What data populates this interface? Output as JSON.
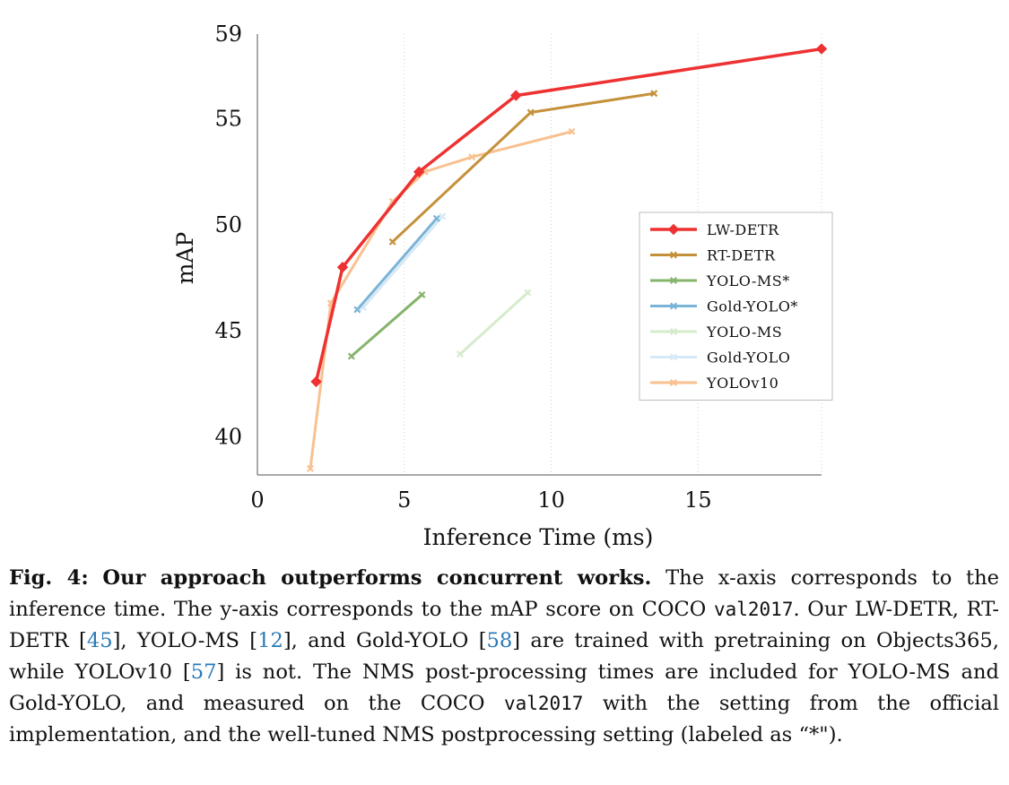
{
  "chart_data": {
    "type": "line",
    "xlabel": "Inference Time (ms)",
    "ylabel": "mAP",
    "xlim": [
      0,
      19.2
    ],
    "ylim": [
      38.2,
      59
    ],
    "x_ticks": [
      0,
      5,
      10,
      15
    ],
    "y_ticks": [
      59,
      55,
      50,
      45,
      40
    ],
    "grid": "x-only, dotted",
    "legend_position": "center-right",
    "series": [
      {
        "name": "LW-DETR",
        "color": "#ee3131",
        "marker": "diamond",
        "width": 3.5,
        "x": [
          2.0,
          2.9,
          5.5,
          8.8,
          19.2
        ],
        "y": [
          42.6,
          48.0,
          52.5,
          56.1,
          58.3
        ]
      },
      {
        "name": "RT-DETR",
        "color": "#c4913a",
        "marker": "x",
        "width": 3,
        "x": [
          4.6,
          9.3,
          13.5
        ],
        "y": [
          49.2,
          55.3,
          56.2
        ]
      },
      {
        "name": "YOLO-MS*",
        "color": "#86b46b",
        "marker": "x",
        "width": 3,
        "x": [
          3.2,
          5.6
        ],
        "y": [
          43.8,
          46.7
        ]
      },
      {
        "name": "Gold-YOLO*",
        "color": "#7ab4d6",
        "marker": "x",
        "width": 3,
        "x": [
          3.4,
          6.1
        ],
        "y": [
          46.0,
          50.3
        ]
      },
      {
        "name": "YOLO-MS",
        "color": "#d5ebcb",
        "marker": "x",
        "width": 3,
        "x": [
          6.9,
          9.2
        ],
        "y": [
          43.9,
          46.8
        ]
      },
      {
        "name": "Gold-YOLO",
        "color": "#d6e9f6",
        "marker": "x",
        "width": 3,
        "x": [
          3.6,
          6.3
        ],
        "y": [
          46.1,
          50.4
        ]
      },
      {
        "name": "YOLOv10",
        "color": "#f8c18f",
        "marker": "x",
        "width": 3,
        "x": [
          1.8,
          2.5,
          4.6,
          5.7,
          7.3,
          10.7
        ],
        "y": [
          38.5,
          46.3,
          51.1,
          52.5,
          53.2,
          54.4
        ]
      }
    ]
  },
  "caption": {
    "fig_label": "Fig. 4:",
    "bold_title": "Our approach outperforms concurrent works.",
    "seg1": "The x-axis corresponds to the inference time. The y-axis corresponds to the mAP score on COCO",
    "code1": "val2017",
    "seg2": ". Our LW-DETR, RT-DETR [",
    "ref1": "45",
    "seg3": "], YOLO-MS [",
    "ref2": "12",
    "seg4": "], and Gold-YOLO [",
    "ref3": "58",
    "seg5": "] are trained with pretraining on Objects365, while YOLOv10 [",
    "ref4": "57",
    "seg6": "] is not. The NMS post-processing times are included for YOLO-MS and Gold-YOLO, and measured on the COCO",
    "code2": "val2017",
    "seg7": "with the setting from the official implementation, and the well-tuned NMS postprocessing setting (labeled as “*\")."
  }
}
